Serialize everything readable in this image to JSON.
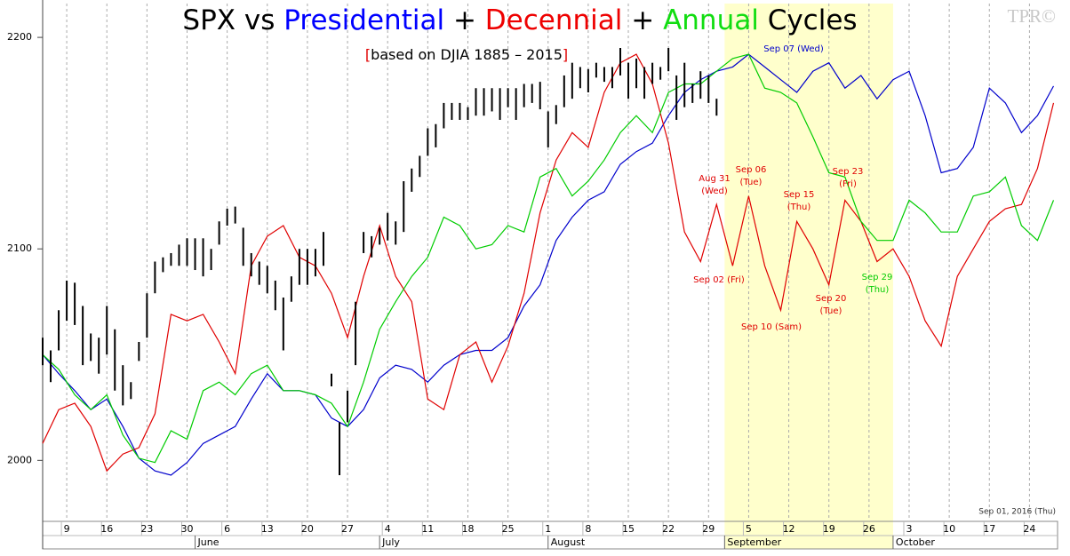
{
  "chart_data": {
    "type": "line",
    "title_prefix": "SPX vs",
    "title_joiner": "+",
    "title_suffix": "Cycles",
    "subtitle": "based on DJIA 1885 – 2015",
    "subtitle_brackets": [
      "[",
      "]"
    ],
    "bracket_color": "#e00000",
    "watermark": "TPR©",
    "footer": "Sep 01, 2016 (Thu)",
    "xlim": [
      2,
      128.5
    ],
    "ylim": [
      1972,
      2216
    ],
    "yticks": [
      2000,
      2100,
      2200
    ],
    "xticks": [
      {
        "value": 5,
        "label": "9"
      },
      {
        "value": 10,
        "label": "16"
      },
      {
        "value": 15,
        "label": "23"
      },
      {
        "value": 20,
        "label": "30"
      },
      {
        "value": 25,
        "label": "6"
      },
      {
        "value": 30,
        "label": "13"
      },
      {
        "value": 35,
        "label": "20"
      },
      {
        "value": 40,
        "label": "27"
      },
      {
        "value": 45,
        "label": "4"
      },
      {
        "value": 50,
        "label": "11"
      },
      {
        "value": 55,
        "label": "18"
      },
      {
        "value": 60,
        "label": "25"
      },
      {
        "value": 65,
        "label": "1"
      },
      {
        "value": 70,
        "label": "8"
      },
      {
        "value": 75,
        "label": "15"
      },
      {
        "value": 80,
        "label": "22"
      },
      {
        "value": 85,
        "label": "29"
      },
      {
        "value": 90,
        "label": "5"
      },
      {
        "value": 95,
        "label": "12"
      },
      {
        "value": 100,
        "label": "19"
      },
      {
        "value": 105,
        "label": "26"
      },
      {
        "value": 110,
        "label": "3"
      },
      {
        "value": 115,
        "label": "10"
      },
      {
        "value": 120,
        "label": "17"
      },
      {
        "value": 125,
        "label": "24"
      }
    ],
    "months": [
      {
        "value": 21,
        "label": "June"
      },
      {
        "value": 44,
        "label": "July"
      },
      {
        "value": 65,
        "label": "August"
      },
      {
        "value": 87,
        "label": "September"
      },
      {
        "value": 108,
        "label": "October"
      }
    ],
    "grid": true,
    "highlight": {
      "range": [
        87,
        108
      ],
      "color": "#ffffcc"
    },
    "bars": {
      "color": "#000000",
      "x": [
        2,
        3,
        4,
        5,
        6,
        7,
        8,
        9,
        10,
        11,
        12,
        13,
        14,
        15,
        16,
        17,
        18,
        19,
        20,
        21,
        22,
        23,
        24,
        25,
        26,
        27,
        28,
        29,
        30,
        31,
        32,
        33,
        34,
        35,
        36,
        37,
        38,
        39,
        40,
        41,
        42,
        43,
        44,
        45,
        46,
        47,
        48,
        49,
        50,
        51,
        52,
        53,
        54,
        55,
        56,
        57,
        58,
        59,
        60,
        61,
        62,
        63,
        64,
        65,
        66,
        67,
        68,
        69,
        70,
        71,
        72,
        73,
        74,
        75,
        76,
        77,
        78,
        79,
        80,
        81,
        82,
        83,
        84,
        85,
        86
      ],
      "high": [
        2058,
        2052,
        2071,
        2085,
        2084,
        2073,
        2060,
        2058,
        2073,
        2062,
        2045,
        2037,
        2056,
        2079,
        2094,
        2096,
        2098,
        2102,
        2105,
        2105,
        2105,
        2100,
        2113,
        2119,
        2120,
        2110,
        2098,
        2094,
        2092,
        2085,
        2077,
        2087,
        2100,
        2100,
        2100,
        2108,
        2041,
        2018,
        2033,
        2075,
        2108,
        2106,
        2110,
        2117,
        2113,
        2132,
        2138,
        2144,
        2157,
        2159,
        2169,
        2169,
        2169,
        2167,
        2176,
        2176,
        2176,
        2176,
        2176,
        2176,
        2178,
        2178,
        2179,
        2165,
        2168,
        2182,
        2188,
        2186,
        2185,
        2188,
        2186,
        2186,
        2195,
        2188,
        2190,
        2186,
        2188,
        2186,
        2195,
        2182,
        2188,
        2178,
        2184,
        2182,
        2171
      ],
      "low": [
        2045,
        2037,
        2052,
        2066,
        2064,
        2045,
        2047,
        2041,
        2050,
        2033,
        2026,
        2029,
        2047,
        2058,
        2079,
        2089,
        2092,
        2092,
        2092,
        2090,
        2087,
        2090,
        2102,
        2111,
        2112,
        2092,
        2087,
        2083,
        2079,
        2071,
        2052,
        2075,
        2083,
        2083,
        2087,
        2092,
        2035,
        1993,
        2018,
        2045,
        2098,
        2096,
        2102,
        2104,
        2102,
        2108,
        2127,
        2134,
        2144,
        2148,
        2157,
        2161,
        2161,
        2161,
        2163,
        2163,
        2165,
        2161,
        2167,
        2161,
        2167,
        2169,
        2166,
        2148,
        2159,
        2167,
        2171,
        2176,
        2174,
        2181,
        2179,
        2176,
        2182,
        2171,
        2176,
        2171,
        2178,
        2180,
        2184,
        2161,
        2167,
        2169,
        2171,
        2169,
        2163
      ]
    },
    "x": [
      2,
      4,
      6,
      8,
      10,
      12,
      14,
      16,
      18,
      20,
      22,
      24,
      26,
      28,
      30,
      32,
      34,
      36,
      38,
      40,
      42,
      44,
      46,
      48,
      50,
      52,
      54,
      56,
      58,
      60,
      62,
      64,
      66,
      68,
      70,
      72,
      74,
      76,
      78,
      80,
      82,
      84,
      86,
      88,
      90,
      92,
      94,
      96,
      98,
      100,
      102,
      104,
      106,
      108,
      110,
      112,
      114,
      116,
      118,
      120,
      122,
      124,
      126,
      128
    ],
    "series": [
      {
        "name": "Presidential",
        "color": "#0000cc",
        "title_color": "#0000ff",
        "values": [
          2050,
          2041,
          2033,
          2024,
          2029,
          2016,
          2001,
          1995,
          1993,
          1999,
          2008,
          2012,
          2016,
          2029,
          2041,
          2033,
          2033,
          2031,
          2020,
          2016,
          2024,
          2039,
          2045,
          2043,
          2037,
          2045,
          2050,
          2052,
          2052,
          2058,
          2073,
          2083,
          2104,
          2115,
          2123,
          2127,
          2140,
          2146,
          2150,
          2163,
          2174,
          2180,
          2184,
          2186,
          2192,
          2186,
          2180,
          2174,
          2184,
          2188,
          2176,
          2182,
          2171,
          2180,
          2184,
          2163,
          2136,
          2138,
          2148,
          2176,
          2169,
          2155,
          2163,
          2177
        ]
      },
      {
        "name": "Decennial",
        "color": "#e00000",
        "title_color": "#ee0000",
        "values": [
          2008,
          2024,
          2027,
          2016,
          1995,
          2003,
          2006,
          2022,
          2069,
          2066,
          2069,
          2056,
          2041,
          2092,
          2106,
          2111,
          2096,
          2092,
          2079,
          2058,
          2087,
          2111,
          2087,
          2075,
          2029,
          2024,
          2050,
          2056,
          2037,
          2054,
          2079,
          2117,
          2142,
          2155,
          2148,
          2174,
          2188,
          2192,
          2178,
          2150,
          2108,
          2094,
          2121,
          2092,
          2125,
          2092,
          2071,
          2113,
          2100,
          2083,
          2123,
          2113,
          2094,
          2100,
          2087,
          2066,
          2054,
          2087,
          2100,
          2113,
          2119,
          2121,
          2138,
          2169
        ]
      },
      {
        "name": "Annual",
        "color": "#00cc00",
        "title_color": "#11dd11",
        "values": [
          2050,
          2043,
          2031,
          2024,
          2031,
          2012,
          2001,
          1999,
          2014,
          2010,
          2033,
          2037,
          2031,
          2041,
          2045,
          2033,
          2033,
          2031,
          2027,
          2016,
          2037,
          2062,
          2075,
          2087,
          2096,
          2115,
          2111,
          2100,
          2102,
          2111,
          2108,
          2134,
          2138,
          2125,
          2132,
          2142,
          2155,
          2163,
          2155,
          2174,
          2178,
          2178,
          2184,
          2190,
          2192,
          2176,
          2174,
          2169,
          2153,
          2136,
          2134,
          2113,
          2104,
          2104,
          2123,
          2117,
          2108,
          2108,
          2125,
          2127,
          2134,
          2111,
          2104,
          2123
        ]
      }
    ],
    "annotations": [
      {
        "lines": [
          "Sep 07 (Wed)"
        ],
        "color": "#0000cc"
      },
      {
        "lines": [
          "Aug 31",
          "(Wed)"
        ],
        "color": "#e00000"
      },
      {
        "lines": [
          "Sep 06",
          "(Tue)"
        ],
        "color": "#e00000"
      },
      {
        "lines": [
          "Sep 15",
          "(Thu)"
        ],
        "color": "#e00000"
      },
      {
        "lines": [
          "Sep 23",
          "(Fri)"
        ],
        "color": "#e00000"
      },
      {
        "lines": [
          "Sep 02 (Fri)"
        ],
        "color": "#e00000"
      },
      {
        "lines": [
          "Sep 10 (Sam)"
        ],
        "color": "#e00000"
      },
      {
        "lines": [
          "Sep 20",
          "(Tue)"
        ],
        "color": "#e00000"
      },
      {
        "lines": [
          "Sep 29",
          "(Thu)"
        ],
        "color": "#00cc00"
      }
    ]
  }
}
